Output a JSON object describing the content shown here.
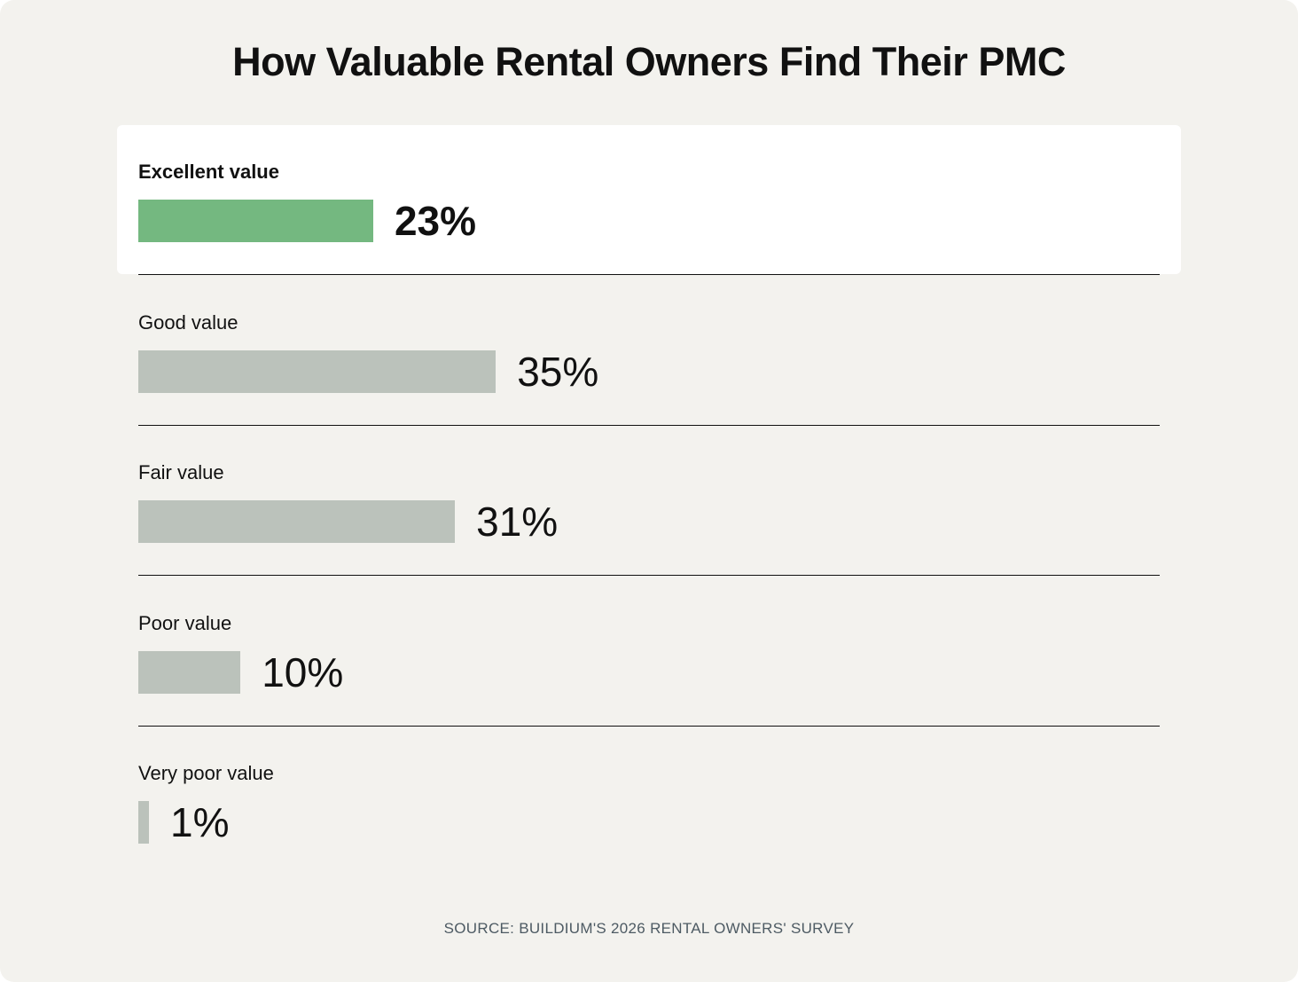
{
  "title": "How Valuable Rental Owners Find Their PMC",
  "source": "SOURCE: BUILDIUM'S 2026 RENTAL OWNERS' SURVEY",
  "colors": {
    "background": "#f3f2ee",
    "highlight_bar": "#74b880",
    "bar": "#bbc2bb",
    "highlight_row": "#ffffff"
  },
  "chart_data": {
    "type": "bar",
    "orientation": "horizontal",
    "title": "How Valuable Rental Owners Find Their PMC",
    "categories": [
      "Excellent value",
      "Good value",
      "Fair value",
      "Poor value",
      "Very poor value"
    ],
    "values": [
      23,
      35,
      31,
      10,
      1
    ],
    "value_labels": [
      "23%",
      "35%",
      "31%",
      "10%",
      "1%"
    ],
    "unit": "%",
    "highlighted_category": "Excellent value",
    "grid": false,
    "legend": "none"
  }
}
